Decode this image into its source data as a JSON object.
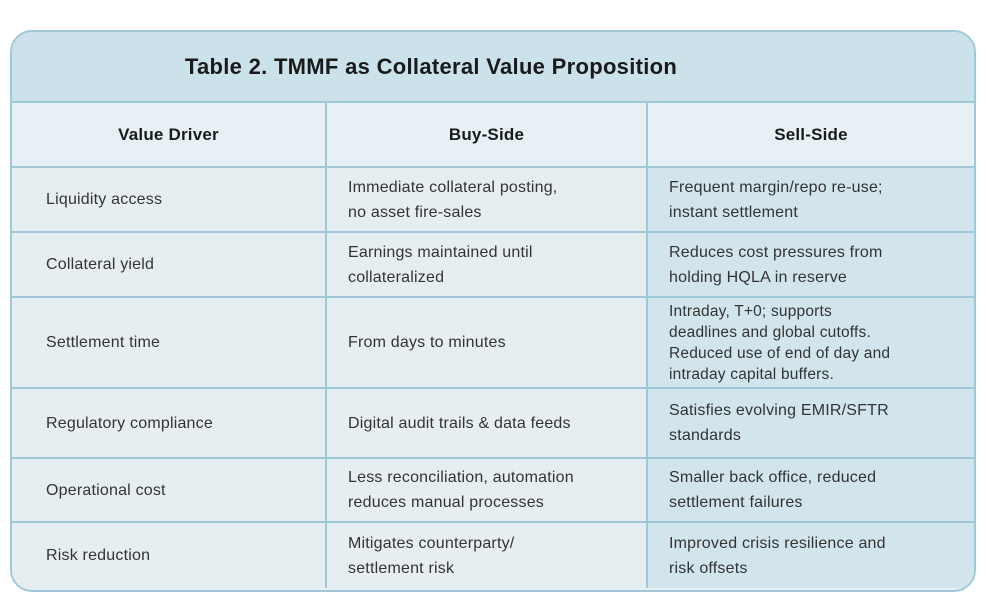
{
  "table": {
    "title": "Table 2. TMMF as Collateral Value Proposition",
    "columns": [
      "Value Driver",
      "Buy-Side",
      "Sell-Side"
    ],
    "rows": [
      {
        "value_driver": "Liquidity access",
        "buy_side": "Immediate collateral posting,\nno asset fire-sales",
        "sell_side": "Frequent margin/repo re-use;\ninstant settlement"
      },
      {
        "value_driver": "Collateral yield",
        "buy_side": "Earnings maintained until\ncollateralized",
        "sell_side": "Reduces cost pressures from\nholding HQLA in reserve"
      },
      {
        "value_driver": "Settlement time",
        "buy_side": "From days to minutes",
        "sell_side": "Intraday, T+0; supports\ndeadlines and global cutoffs.\nReduced use of end of day and\nintraday capital buffers."
      },
      {
        "value_driver": "Regulatory compliance",
        "buy_side": "Digital audit trails & data feeds",
        "sell_side": "Satisfies evolving EMIR/SFTR\nstandards"
      },
      {
        "value_driver": "Operational cost",
        "buy_side": "Less reconciliation, automation\nreduces manual processes",
        "sell_side": "Smaller back office, reduced\nsettlement failures"
      },
      {
        "value_driver": "Risk reduction",
        "buy_side": "Mitigates counterparty/\nsettlement risk",
        "sell_side": "Improved crisis resilience and\nrisk offsets"
      }
    ]
  },
  "colors": {
    "title_band": "#cbe2ea",
    "header_cell": "#e7f1f5",
    "body_cell": "#e7eef2",
    "sell_side_cell": "#d2e5ec",
    "border": "#9fc9d8",
    "text": "#333333",
    "heading_text": "#1a1a1a",
    "page_bg": "#ffffff"
  }
}
